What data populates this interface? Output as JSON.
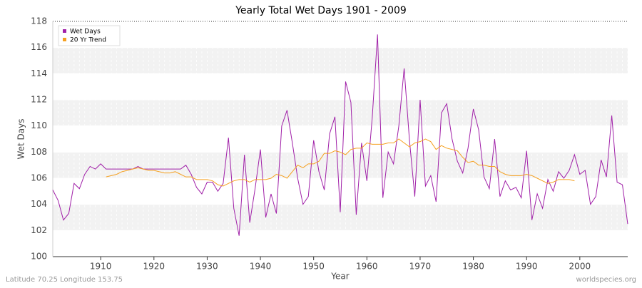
{
  "chart_data": {
    "type": "line",
    "title": "Yearly Total Wet Days 1901 - 2009",
    "x_label": "Year",
    "y_label": "Wet Days",
    "footer_left": "Latitude 70.25 Longitude 153.75",
    "footer_right": "worldspecies.org",
    "x": [
      1901,
      1902,
      1903,
      1904,
      1905,
      1906,
      1907,
      1908,
      1909,
      1910,
      1911,
      1912,
      1913,
      1914,
      1915,
      1916,
      1917,
      1918,
      1919,
      1920,
      1921,
      1922,
      1923,
      1924,
      1925,
      1926,
      1927,
      1928,
      1929,
      1930,
      1931,
      1932,
      1933,
      1934,
      1935,
      1936,
      1937,
      1938,
      1939,
      1940,
      1941,
      1942,
      1943,
      1944,
      1945,
      1946,
      1947,
      1948,
      1949,
      1950,
      1951,
      1952,
      1953,
      1954,
      1955,
      1956,
      1957,
      1958,
      1959,
      1960,
      1961,
      1962,
      1963,
      1964,
      1965,
      1966,
      1967,
      1968,
      1969,
      1970,
      1971,
      1972,
      1973,
      1974,
      1975,
      1976,
      1977,
      1978,
      1979,
      1980,
      1981,
      1982,
      1983,
      1984,
      1985,
      1986,
      1987,
      1988,
      1989,
      1990,
      1991,
      1992,
      1993,
      1994,
      1995,
      1996,
      1997,
      1998,
      1999,
      2000,
      2001,
      2002,
      2003,
      2004,
      2005,
      2006,
      2007,
      2008,
      2009
    ],
    "series": [
      {
        "name": "Wet Days",
        "color": "#a020a8",
        "values": [
          105.1,
          104.3,
          102.8,
          103.3,
          105.6,
          105.2,
          106.3,
          106.9,
          106.7,
          107.1,
          106.7,
          106.7,
          106.7,
          106.7,
          106.7,
          106.7,
          106.9,
          106.7,
          106.7,
          106.7,
          106.7,
          106.7,
          106.7,
          106.7,
          106.7,
          107.0,
          106.3,
          105.3,
          104.8,
          105.7,
          105.7,
          105.0,
          105.6,
          109.1,
          103.7,
          101.6,
          107.8,
          102.6,
          105.2,
          108.2,
          103.0,
          104.8,
          103.3,
          110.0,
          111.2,
          108.7,
          106.0,
          104.0,
          104.6,
          108.9,
          106.5,
          105.1,
          109.4,
          110.7,
          103.4,
          113.4,
          111.8,
          103.2,
          108.7,
          105.8,
          110.6,
          117.0,
          104.5,
          108.0,
          107.1,
          110.0,
          114.4,
          108.9,
          104.6,
          112.0,
          105.4,
          106.2,
          104.2,
          111.0,
          111.7,
          109.0,
          107.3,
          106.4,
          108.3,
          111.3,
          109.7,
          106.1,
          105.2,
          109.0,
          104.6,
          105.8,
          105.1,
          105.3,
          104.5,
          108.1,
          102.8,
          104.8,
          103.7,
          105.9,
          105.0,
          106.5,
          106.0,
          106.6,
          107.8,
          106.3,
          106.6,
          104.0,
          104.6,
          107.4,
          106.1,
          110.8,
          105.7,
          105.5,
          102.5
        ]
      },
      {
        "name": "20 Yr Trend",
        "color": "#f5a020",
        "values": [
          null,
          null,
          null,
          null,
          null,
          null,
          null,
          null,
          null,
          null,
          106.1,
          106.2,
          106.3,
          106.5,
          106.6,
          106.7,
          106.8,
          106.7,
          106.6,
          106.6,
          106.5,
          106.4,
          106.4,
          106.5,
          106.3,
          106.1,
          106.1,
          105.9,
          105.9,
          105.9,
          105.8,
          105.5,
          105.4,
          105.6,
          105.8,
          105.9,
          105.9,
          105.7,
          105.9,
          105.9,
          105.9,
          106.0,
          106.3,
          106.2,
          106.0,
          106.5,
          107.0,
          106.8,
          107.1,
          107.1,
          107.3,
          107.9,
          107.9,
          108.1,
          108.0,
          107.8,
          108.2,
          108.3,
          108.3,
          108.7,
          108.6,
          108.6,
          108.6,
          108.7,
          108.7,
          109.0,
          108.7,
          108.4,
          108.7,
          108.8,
          109.0,
          108.8,
          108.2,
          108.5,
          108.3,
          108.2,
          108.1,
          107.6,
          107.2,
          107.3,
          107.0,
          107.0,
          106.9,
          106.9,
          106.5,
          106.3,
          106.2,
          106.2,
          106.2,
          106.3,
          106.2,
          106.0,
          105.8,
          105.6,
          105.7,
          105.9,
          105.9,
          105.9,
          105.8,
          null,
          null,
          null,
          null,
          null,
          null,
          null,
          null,
          null,
          null
        ]
      }
    ],
    "xlim": [
      1901,
      2009
    ],
    "xticks": [
      1910,
      1920,
      1930,
      1940,
      1950,
      1960,
      1970,
      1980,
      1990,
      2000
    ],
    "ylim": [
      100,
      118
    ],
    "yticks": [
      100,
      102,
      104,
      106,
      108,
      110,
      112,
      114,
      116,
      118
    ],
    "grid": true,
    "legend": "top-left"
  }
}
